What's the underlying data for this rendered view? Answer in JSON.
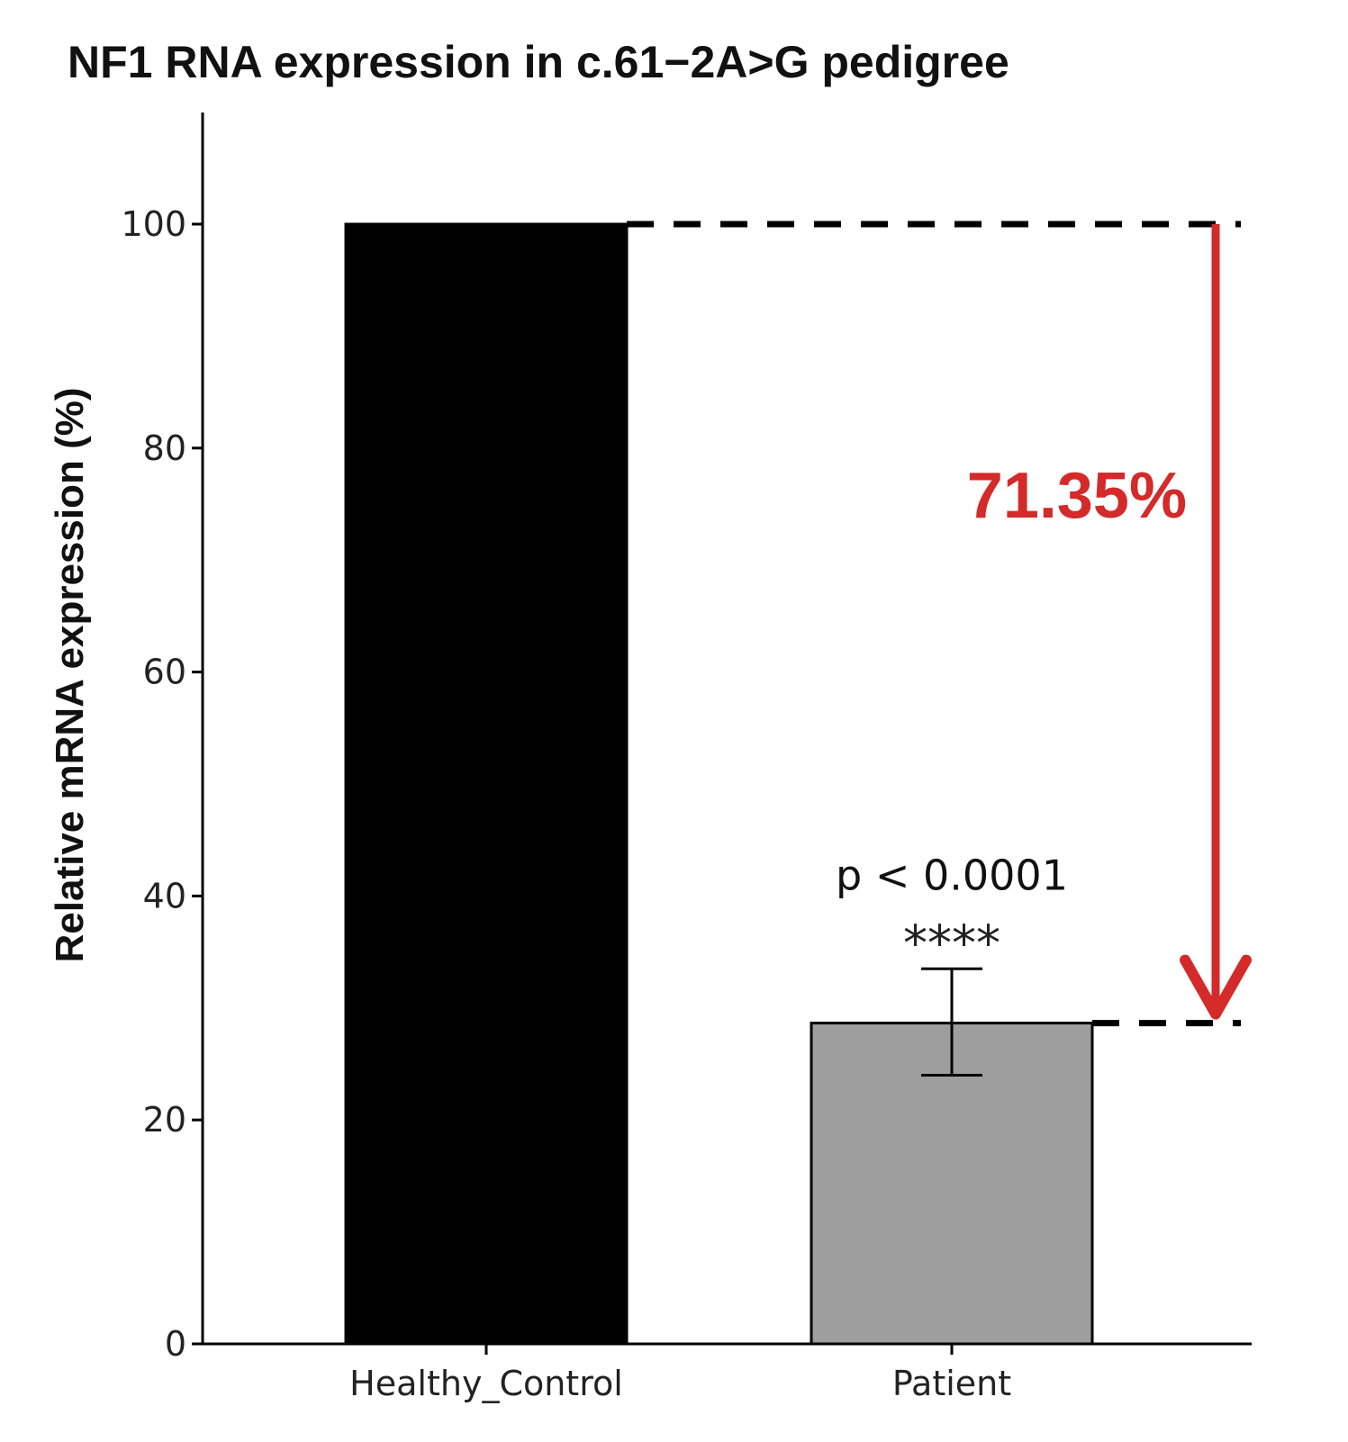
{
  "chart_data": {
    "type": "bar",
    "title": "NF1 RNA expression in c.61−2A>G pedigree",
    "xlabel": "",
    "ylabel": "Relative mRNA expression (%)",
    "ylim": [
      0,
      110
    ],
    "yticks": [
      0,
      20,
      40,
      60,
      80,
      100
    ],
    "ytick_labels": [
      "0",
      "20",
      "40",
      "60",
      "80",
      "100"
    ],
    "categories": [
      "Healthy_Control",
      "Patient"
    ],
    "values": [
      100,
      28.65
    ],
    "error_bars": [
      null,
      {
        "low": 24,
        "high": 33.5
      }
    ],
    "bar_colors": [
      "#000000",
      "#9e9e9e"
    ],
    "grid": false,
    "annotations": {
      "p_value": "p < 0.0001",
      "stars": "****",
      "reduction": "71.35%",
      "reduction_color": "#d42a2a"
    }
  }
}
